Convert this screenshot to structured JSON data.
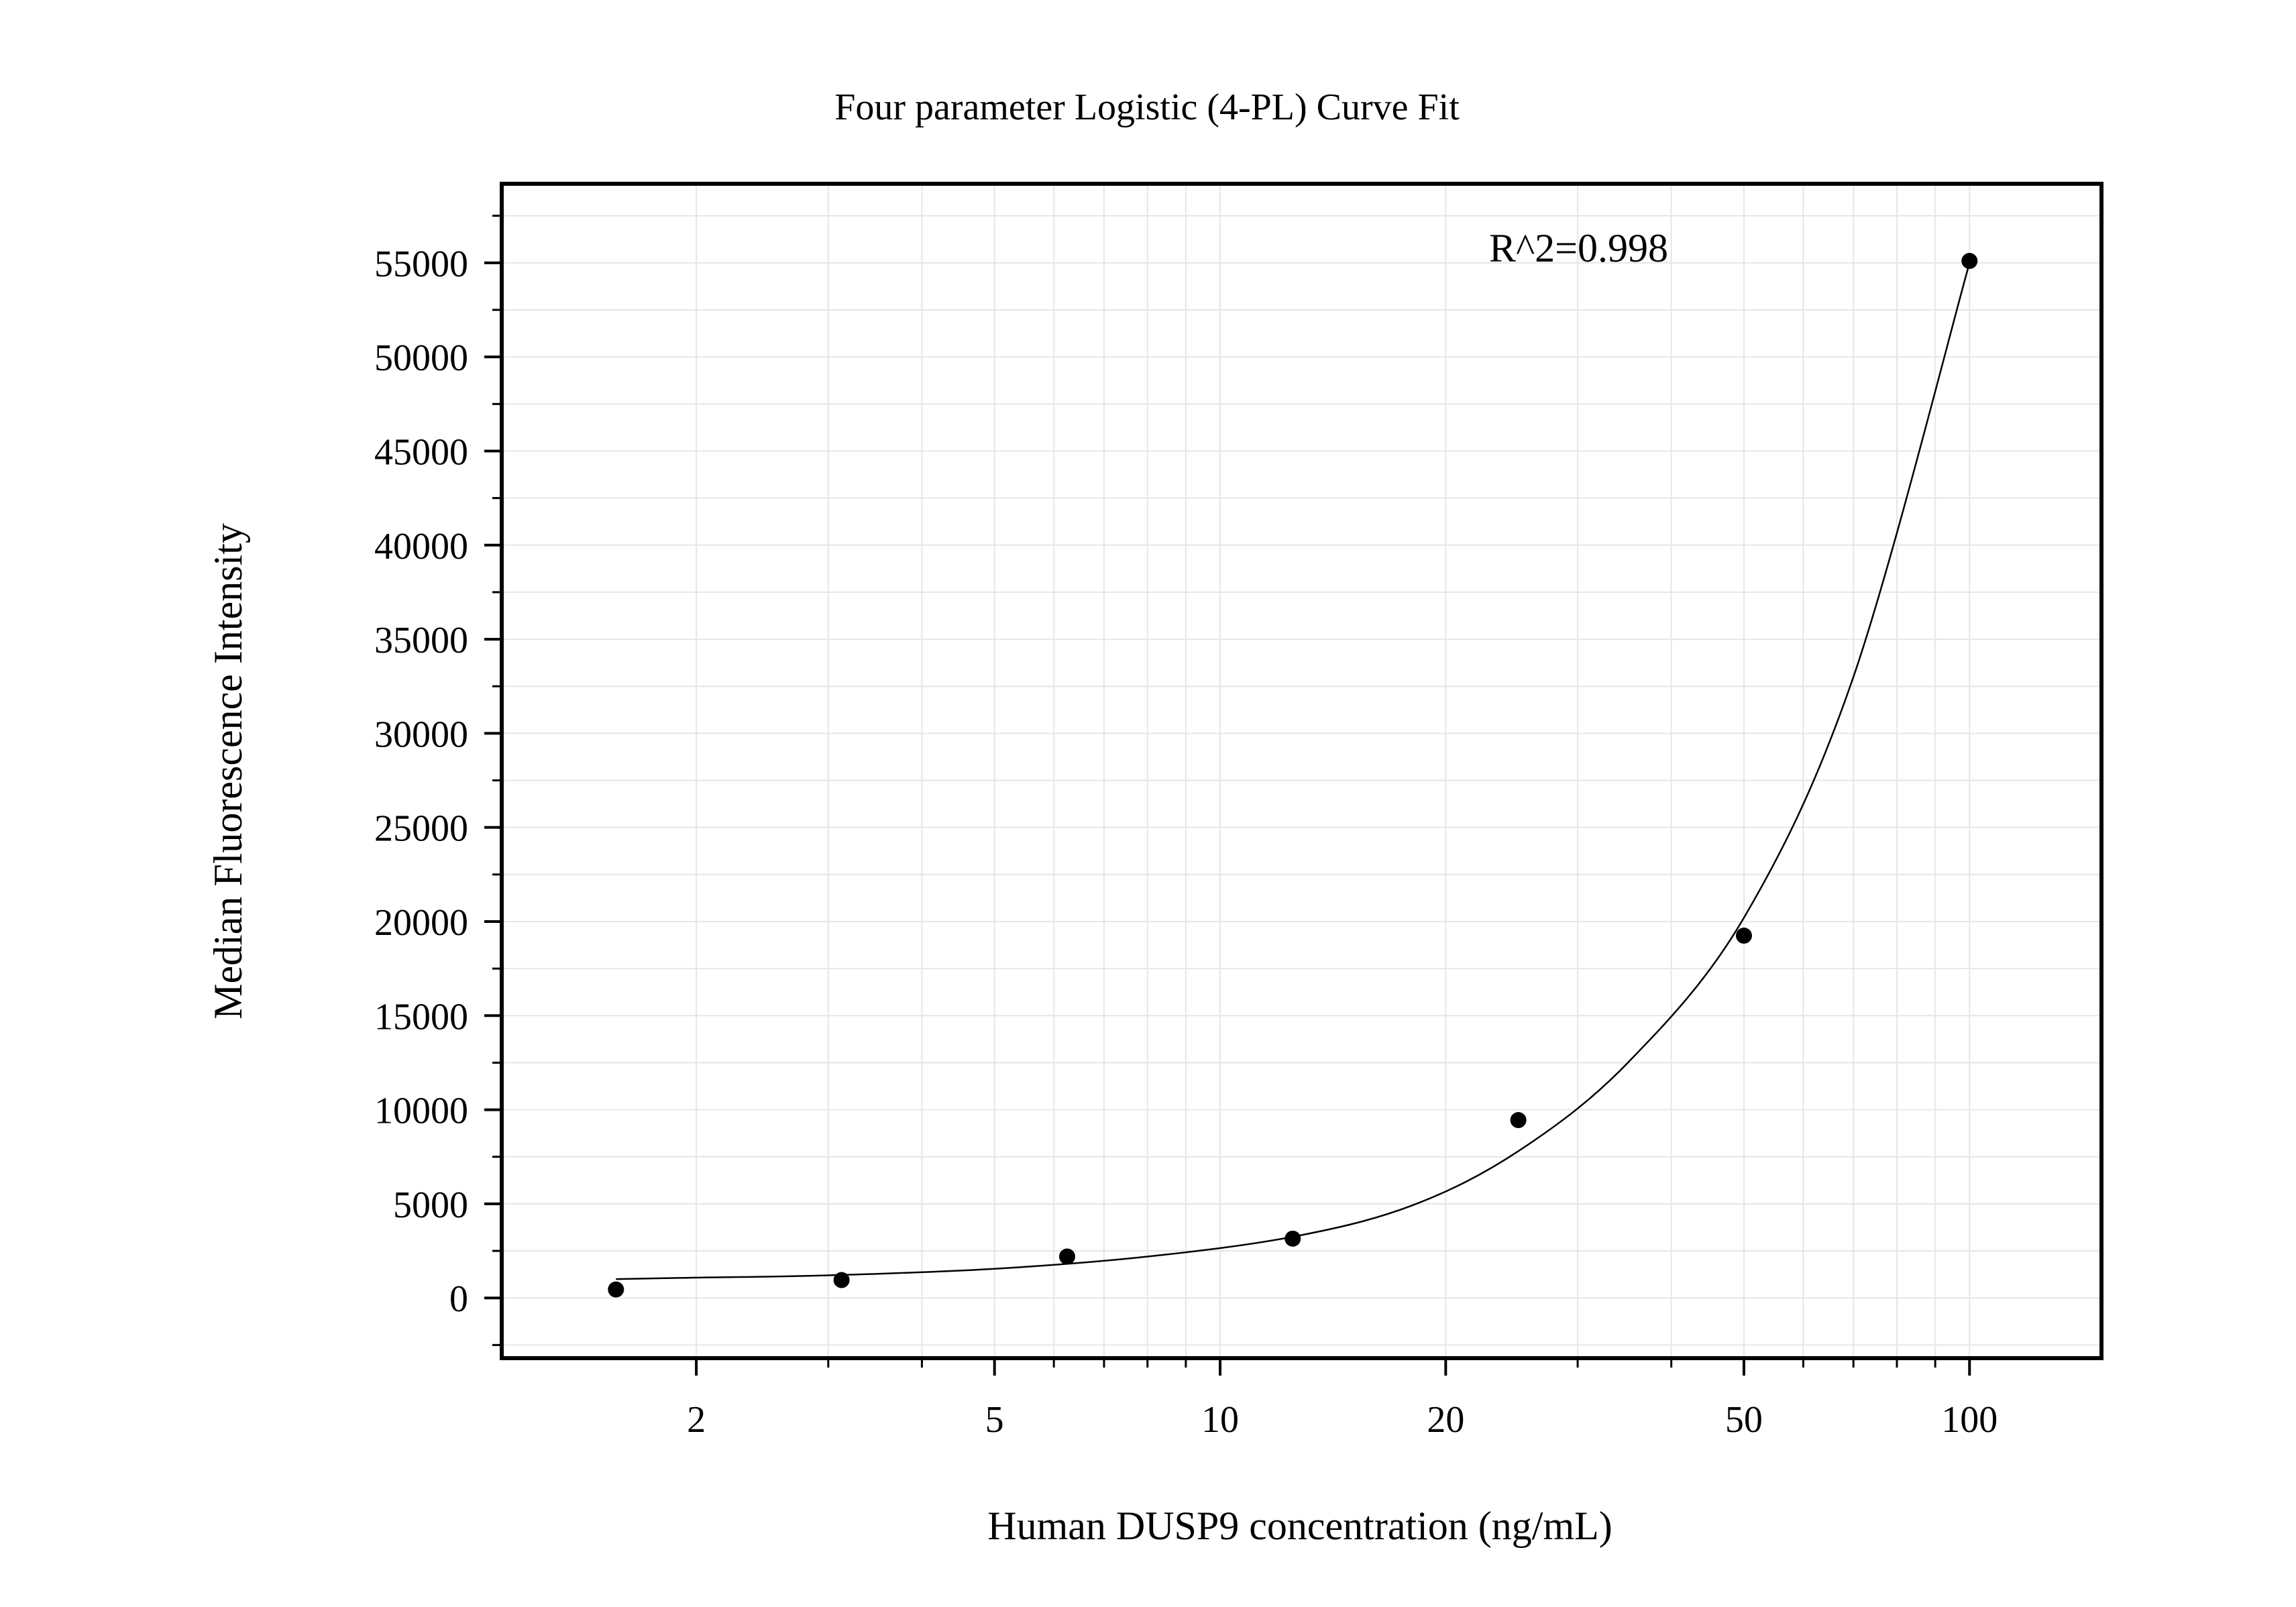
{
  "chart_data": {
    "type": "scatter",
    "title": "Four parameter Logistic (4-PL) Curve Fit",
    "xlabel": "Human DUSP9 concentration (ng/mL)",
    "ylabel": "Median Fluorescence Intensity",
    "x_scale": "log",
    "xlim": [
      1.1,
      150
    ],
    "ylim": [
      -3200,
      59200
    ],
    "x_ticks": [
      2,
      5,
      10,
      20,
      50,
      100
    ],
    "x_tick_labels": [
      "2",
      "5",
      "10",
      "20",
      "50",
      "100"
    ],
    "y_ticks": [
      0,
      5000,
      10000,
      15000,
      20000,
      25000,
      30000,
      35000,
      40000,
      45000,
      50000,
      55000
    ],
    "y_tick_labels": [
      "0",
      "5000",
      "10000",
      "15000",
      "20000",
      "25000",
      "30000",
      "35000",
      "40000",
      "45000",
      "50000",
      "55000"
    ],
    "grid": true,
    "annotation": "R^2=0.998",
    "colors": {
      "points": "#000000",
      "curve": "#000000",
      "grid": "#e6e6e6",
      "frame": "#000000"
    },
    "series": [
      {
        "type": "scatter",
        "x": [
          1.5625,
          3.125,
          6.25,
          12.5,
          25,
          50,
          100
        ],
        "y": [
          450,
          950,
          2200,
          3150,
          9450,
          19250,
          55100
        ]
      },
      {
        "type": "line",
        "curve_x": [
          1.5625,
          2,
          3,
          5,
          8,
          12.5,
          18,
          25,
          35,
          50,
          70,
          100
        ],
        "curve_y": [
          1000,
          1080,
          1200,
          1550,
          2200,
          3250,
          4900,
          7800,
          12500,
          20200,
          33000,
          55000
        ]
      }
    ]
  }
}
